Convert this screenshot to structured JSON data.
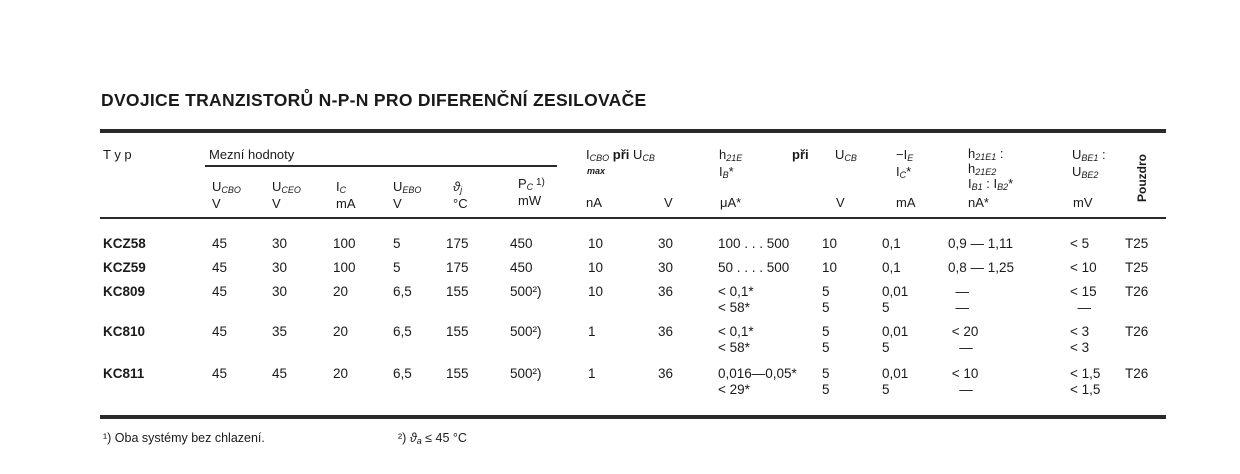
{
  "title": "DVOJICE TRANZISTORŮ N-P-N PRO DIFERENČNÍ ZESILOVAČE",
  "headers": {
    "typ": "T y p",
    "mezni": "Mezní hodnoty",
    "ucbo": {
      "main": "U",
      "sub": "CBO",
      "unit": "V"
    },
    "uceo": {
      "main": "U",
      "sub": "CEO",
      "unit": "V"
    },
    "ic": {
      "main": "I",
      "sub": "C",
      "unit": "mA"
    },
    "uebo": {
      "main": "U",
      "sub": "EBO",
      "unit": "V"
    },
    "tj": {
      "main": "ϑ",
      "sub": "j",
      "unit": "°C"
    },
    "pc": {
      "main": "P",
      "sub": "C",
      "sup": " 1)",
      "unit": "mW"
    },
    "icbo": {
      "main": "I",
      "sub": "CBO",
      "text": " při ",
      "main2": "U",
      "sub2": "CB",
      "max": "max",
      "unit1": "nA",
      "unit2": "V"
    },
    "h21e": {
      "main": "h",
      "sub": "21E",
      "text": "při",
      "line2": "I",
      "sub2": "B",
      "star": "*",
      "unit": "μA*"
    },
    "ucb": {
      "main": "U",
      "sub": "CB",
      "unit": "V"
    },
    "ie": {
      "main": "−I",
      "sub": "E",
      "line2": "I",
      "sub2": "C",
      "star": "*",
      "unit": "mA"
    },
    "ratio": {
      "l1": "h",
      "s1": "21E1",
      "t1": " :",
      "l2": "h",
      "s2": "21E2",
      "l3a": "I",
      "s3a": "B1",
      "t3": " : ",
      "l3b": "I",
      "s3b": "B2",
      "star": "*",
      "unit": "nA*"
    },
    "ube": {
      "l1": "U",
      "s1": "BE1",
      "t1": " :",
      "l2": "U",
      "s2": "BE2",
      "unit": "mV"
    },
    "pouzdro": "Pouzdro"
  },
  "rows": [
    {
      "typ": "KCZ58",
      "cells": [
        "45",
        "30",
        "100",
        "5",
        "175",
        "450",
        "10",
        "30",
        "100 . . . 500",
        "10",
        "0,1",
        "0,9 — 1,11",
        "< 5",
        "T25"
      ]
    },
    {
      "typ": "KCZ59",
      "cells": [
        "45",
        "30",
        "100",
        "5",
        "175",
        "450",
        "10",
        "30",
        "50 . . . . 500",
        "10",
        "0,1",
        "0,8 — 1,25",
        "< 10",
        "T25"
      ]
    },
    {
      "typ": "KC809",
      "cells": [
        "45",
        "30",
        "20",
        "6,5",
        "155",
        "500²)",
        "10",
        "36",
        "< 0,1*\n< 58*",
        "5\n5",
        "0,01\n5",
        "  —\n  —",
        "< 15\n  —",
        "T26"
      ]
    },
    {
      "typ": "KC810",
      "cells": [
        "45",
        "35",
        "20",
        "6,5",
        "155",
        "500²)",
        "1",
        "36",
        "< 0,1*\n< 58*",
        "5\n5",
        "0,01\n5",
        " < 20\n   —",
        "< 3\n< 3",
        "T26"
      ]
    },
    {
      "typ": "KC811",
      "cells": [
        "45",
        "45",
        "20",
        "6,5",
        "155",
        "500²)",
        "1",
        "36",
        "0,016—0,05*\n< 29*",
        "5\n5",
        "0,01\n5",
        " < 10\n   —",
        "< 1,5\n< 1,5",
        "T26"
      ]
    }
  ],
  "footnotes": {
    "f1": "¹) Oba systémy bez chlazení.",
    "f2_pre": "²) ",
    "f2_sym": "ϑ",
    "f2_sub": "a",
    "f2_post": " ≤ 45 °C"
  }
}
